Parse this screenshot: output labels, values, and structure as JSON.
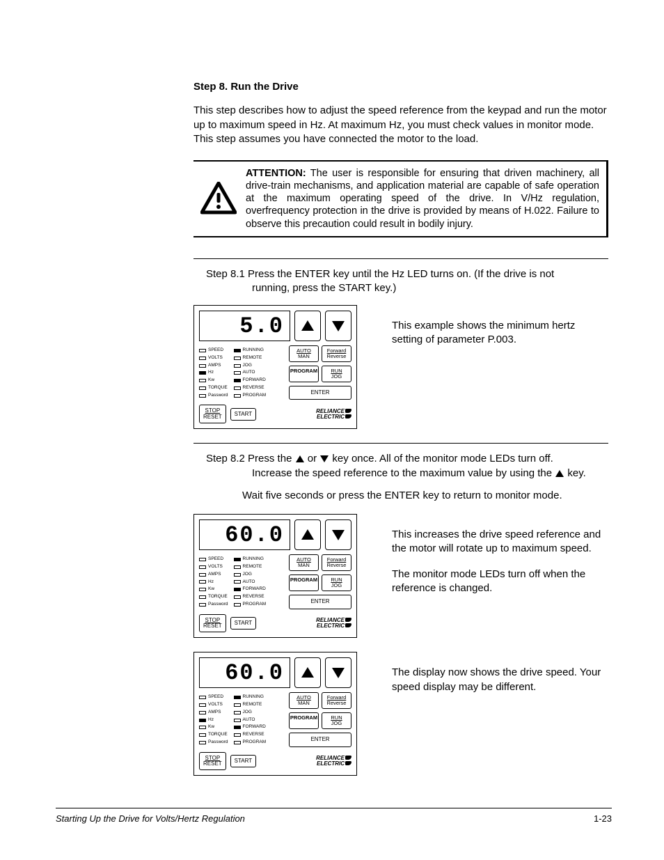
{
  "step_title": "Step 8.   Run the Drive",
  "intro": "This step describes how to adjust the speed reference from the keypad and run the motor up to maximum speed in Hz. At maximum Hz, you must check values in monitor mode. This step assumes you have connected the motor to the load.",
  "attention_label": "ATTENTION:",
  "attention_text": " The user is responsible for ensuring that driven machinery, all drive-train mechanisms, and application material are capable of safe operation at the maximum operating speed of the drive. In V/Hz regulation, overfrequency protection in the drive is provided by means of H.022. Failure to observe this precaution could result in bodily injury.",
  "step81_a": "Step 8.1 Press the ENTER key until the Hz LED turns on. (If the drive is not",
  "step81_b": "running, press the START key.)",
  "desc1": "This example shows the minimum hertz setting of parameter P.003.",
  "step82_a": "Step 8.2 Press the ",
  "step82_b": " or ",
  "step82_c": " key once. All of the monitor mode LEDs turn off.",
  "step82_d": "Increase the speed reference to the maximum value by using the ",
  "step82_e": " key.",
  "step82_wait": "Wait five seconds or press the ENTER key to return to monitor mode.",
  "desc2a": "This increases the drive speed reference and the motor will rotate up to maximum speed.",
  "desc2b": "The monitor mode LEDs turn off when the reference is changed.",
  "desc3": "The display now shows the drive speed. Your speed display may be different.",
  "footer_left": "Starting Up the Drive for Volts/Hertz Regulation",
  "footer_right": "1-23",
  "keypad": {
    "left_leds": [
      {
        "label": "SPEED"
      },
      {
        "label": "VOLTS"
      },
      {
        "label": "AMPS"
      },
      {
        "label": "Hz"
      },
      {
        "label": "Kw"
      },
      {
        "label": "TORQUE"
      },
      {
        "label": "Password"
      }
    ],
    "right_leds": [
      {
        "label": "RUNNING"
      },
      {
        "label": "REMOTE"
      },
      {
        "label": "JOG"
      },
      {
        "label": "AUTO"
      },
      {
        "label": "FORWARD"
      },
      {
        "label": "REVERSE"
      },
      {
        "label": "PROGRAM"
      }
    ],
    "buttons": {
      "auto_top": "AUTO",
      "auto_bot": "MAN",
      "fwd_top": "Forward",
      "fwd_bot": "Reverse",
      "program": "PROGRAM",
      "run_top": "RUN",
      "run_bot": "JOG",
      "enter": "ENTER",
      "stop_top": "STOP",
      "stop_bot": "RESET",
      "start": "START",
      "logo1": "RELIANCE",
      "logo2": "ELECTRIC"
    }
  },
  "panel1": {
    "display": "5.0",
    "left_on": [
      false,
      false,
      false,
      true,
      false,
      false,
      false
    ],
    "right_on": [
      true,
      false,
      false,
      false,
      true,
      false,
      false
    ]
  },
  "panel2": {
    "display": "60.0",
    "left_on": [
      false,
      false,
      false,
      false,
      false,
      false,
      false
    ],
    "right_on": [
      true,
      false,
      false,
      false,
      true,
      false,
      false
    ]
  },
  "panel3": {
    "display": "60.0",
    "left_on": [
      false,
      false,
      false,
      true,
      false,
      false,
      false
    ],
    "right_on": [
      true,
      false,
      false,
      false,
      true,
      false,
      false
    ]
  }
}
